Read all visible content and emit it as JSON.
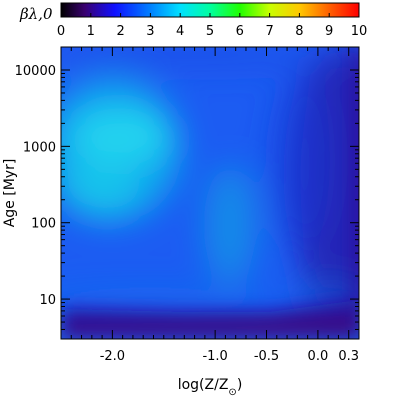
{
  "chart_data": {
    "type": "heatmap",
    "title": "",
    "xlabel": "log(Z/Z⊙)",
    "ylabel": "Age [Myr]",
    "x_scale": "linear",
    "y_scale": "log",
    "xlim": [
      -2.5,
      0.4
    ],
    "ylim": [
      3,
      20000
    ],
    "x_ticks": [
      -2.0,
      -1.0,
      -0.5,
      0.0,
      0.3
    ],
    "x_tick_labels": [
      "-2.0",
      "-1.0",
      "-0.5",
      "0.0",
      "0.3"
    ],
    "y_ticks": [
      10,
      100,
      1000,
      10000
    ],
    "y_tick_labels": [
      "10",
      "100",
      "1000",
      "10000"
    ],
    "colorbar": {
      "label": "βλ,0",
      "range": [
        0,
        10
      ],
      "ticks": [
        0,
        1,
        2,
        3,
        4,
        5,
        6,
        7,
        8,
        9,
        10
      ],
      "tick_labels": [
        "0",
        "1",
        "2",
        "3",
        "4",
        "5",
        "6",
        "7",
        "8",
        "9",
        "10"
      ],
      "colormap": "rainbow (black-purple-blue-cyan-green-yellow-red)"
    },
    "z_values_description": "beta values: ~2.5-3.0 at low metallicity (log Z < -1.3) and ages 150-1500 Myr; ~2.0-2.4 across most of the field; ~1.3-1.8 at solar/supersolar metallicity for ages > 100 Myr; ~0.8-1.2 at ages < 8 Myr",
    "grid": false,
    "legend": "none"
  }
}
